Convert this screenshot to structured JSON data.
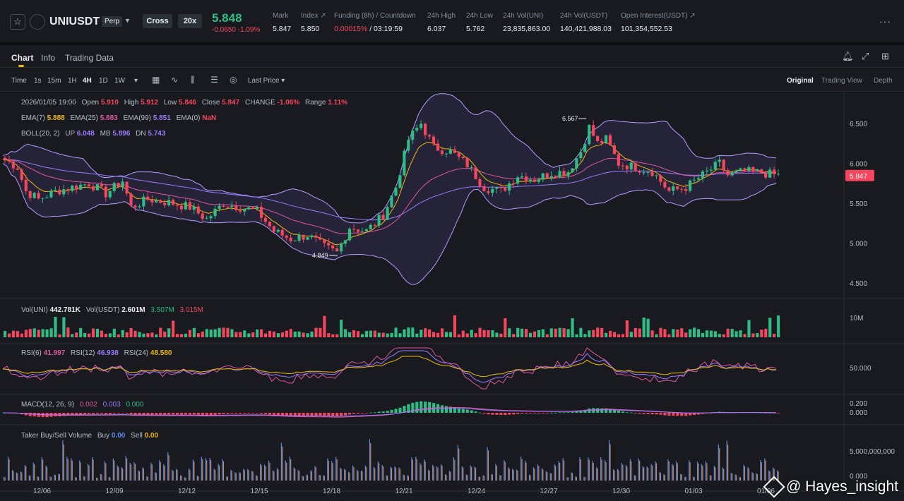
{
  "header": {
    "symbol": "UNIUSDT",
    "contract_type": "Perp",
    "margin_mode": "Cross",
    "leverage": "20x",
    "last_price": "5.848",
    "change": "-0.0650",
    "change_pct": "-1.09%",
    "stats": [
      {
        "label": "Mark",
        "value": "5.847"
      },
      {
        "label": "Index",
        "value": "5.850"
      },
      {
        "label": "Funding (8h) / Countdown",
        "value_red": "0.00015%",
        "value": " / 03:19:59"
      },
      {
        "label": "24h High",
        "value": "6.037"
      },
      {
        "label": "24h Low",
        "value": "5.762"
      },
      {
        "label": "24h Vol(UNI)",
        "value": "23,835,863.00"
      },
      {
        "label": "24h Vol(USDT)",
        "value": "140,421,988.03"
      },
      {
        "label": "Open Interest(USDT)",
        "value": "101,354,552.53"
      }
    ]
  },
  "tabs": [
    "Chart",
    "Info",
    "Trading Data"
  ],
  "toolbar": {
    "intervals": [
      "Time",
      "1s",
      "15m",
      "1H",
      "4H",
      "1D",
      "1W"
    ],
    "active_interval": "4H",
    "price_source": "Last Price",
    "views": [
      "Original",
      "Trading View",
      "Depth"
    ],
    "active_view": "Original"
  },
  "legend": {
    "ohlc": {
      "date": "2026/01/05 19:00",
      "open": "5.910",
      "high": "5.912",
      "low": "5.846",
      "close": "5.847",
      "change": "-1.06%",
      "range": "1.11%"
    },
    "ema": {
      "ema7": "5.888",
      "ema25": "5.883",
      "ema99": "5.851",
      "ema0": "NaN"
    },
    "boll": {
      "label": "BOLL(20, 2)",
      "up": "6.048",
      "mb": "5.896",
      "dn": "5.743"
    },
    "vol": {
      "vol_uni": "442.781K",
      "vol_usdt": "2.601M",
      "ma1": "3.507M",
      "ma2": "3.015M"
    },
    "rsi": {
      "rsi6": "41.997",
      "rsi12": "46.938",
      "rsi24": "48.580"
    },
    "macd": {
      "label": "MACD(12, 26, 9)",
      "dif": "0.002",
      "dea": "0.003",
      "hist": "0.000"
    },
    "taker": {
      "label": "Taker Buy/Sell Volume",
      "buy": "0.00",
      "sell": "0.00"
    }
  },
  "chart_data": {
    "type": "candlestick",
    "x_ticks": [
      "12/06",
      "12/09",
      "12/12",
      "12/15",
      "12/18",
      "12/21",
      "12/24",
      "12/27",
      "12/30",
      "01/03",
      "01/06"
    ],
    "price_ticks": [
      "6.500",
      "6.000",
      "5.500",
      "5.000",
      "4.500"
    ],
    "current_price_tag": "5.847",
    "annotations": {
      "high": "6.567",
      "low": "4.849"
    },
    "volume_tick": "10M",
    "rsi_tick": "50.000",
    "macd_ticks": [
      "0.200",
      "0.000"
    ],
    "taker_ticks": [
      "5,000,000,000",
      "0.000"
    ],
    "colors": {
      "up": "#2ebd85",
      "down": "#f6465d",
      "ema7": "#f0b90b",
      "ema25": "#e056a0",
      "ema99": "#9b7bff",
      "boll": "#b59cff"
    },
    "price_keypoints": [
      [
        0,
        6.05
      ],
      [
        3,
        5.95
      ],
      [
        5,
        5.65
      ],
      [
        8,
        5.55
      ],
      [
        12,
        5.65
      ],
      [
        16,
        5.7
      ],
      [
        20,
        5.75
      ],
      [
        24,
        5.62
      ],
      [
        28,
        5.78
      ],
      [
        30,
        5.45
      ],
      [
        34,
        5.55
      ],
      [
        40,
        5.5
      ],
      [
        44,
        5.45
      ],
      [
        48,
        5.3
      ],
      [
        52,
        5.5
      ],
      [
        56,
        5.45
      ],
      [
        60,
        5.4
      ],
      [
        64,
        5.15
      ],
      [
        68,
        5.05
      ],
      [
        72,
        5.1
      ],
      [
        76,
        4.95
      ],
      [
        79,
        4.88
      ],
      [
        82,
        5.2
      ],
      [
        86,
        5.15
      ],
      [
        90,
        5.35
      ],
      [
        93,
        5.7
      ],
      [
        96,
        6.3
      ],
      [
        99,
        6.5
      ],
      [
        102,
        6.2
      ],
      [
        106,
        6.15
      ],
      [
        110,
        5.98
      ],
      [
        114,
        5.7
      ],
      [
        118,
        5.65
      ],
      [
        122,
        5.85
      ],
      [
        126,
        5.8
      ],
      [
        130,
        5.88
      ],
      [
        134,
        5.9
      ],
      [
        137,
        6.15
      ],
      [
        139,
        6.45
      ],
      [
        141,
        6.25
      ],
      [
        143,
        6.3
      ],
      [
        146,
        6.0
      ],
      [
        150,
        5.95
      ],
      [
        154,
        5.9
      ],
      [
        158,
        5.65
      ],
      [
        162,
        5.7
      ],
      [
        166,
        5.85
      ],
      [
        170,
        6.0
      ],
      [
        172,
        5.85
      ],
      [
        176,
        5.9
      ],
      [
        180,
        5.88
      ],
      [
        184,
        5.85
      ]
    ]
  }
}
